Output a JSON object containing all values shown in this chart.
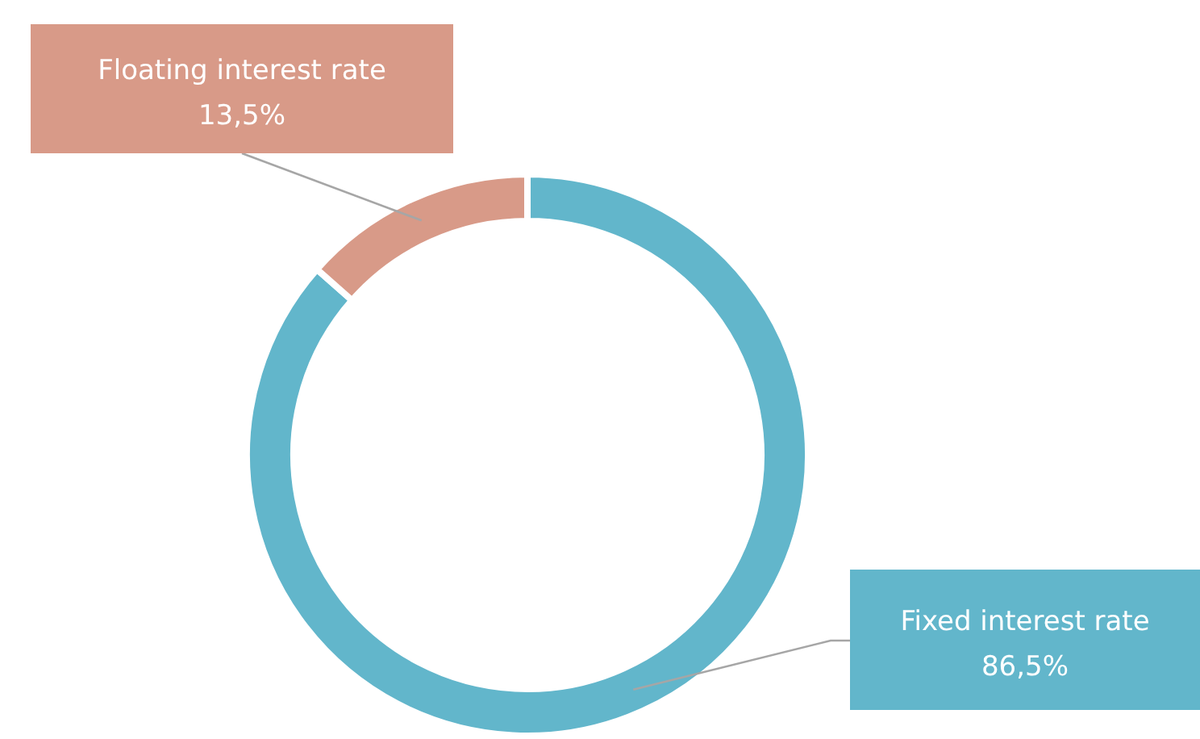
{
  "chart_data": {
    "type": "donut",
    "categories": [
      "Fixed interest rate",
      "Floating interest rate"
    ],
    "values": [
      86.5,
      13.5
    ],
    "colors": [
      "#62b6cb",
      "#d89a88"
    ],
    "value_labels": [
      "86,5%",
      "13,5%"
    ]
  }
}
